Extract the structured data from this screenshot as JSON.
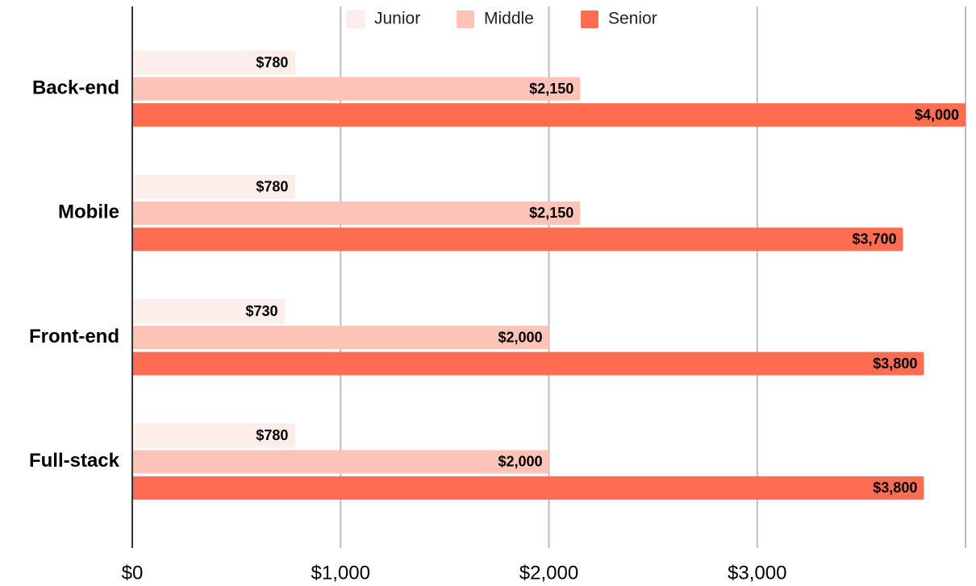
{
  "chart_data": {
    "type": "bar",
    "orientation": "horizontal",
    "categories": [
      "Back-end",
      "Mobile",
      "Front-end",
      "Full-stack"
    ],
    "series": [
      {
        "name": "Junior",
        "color": "#fdeee9",
        "values": [
          780,
          780,
          730,
          780
        ],
        "value_labels": [
          "$780",
          "$780",
          "$730",
          "$780"
        ]
      },
      {
        "name": "Middle",
        "color": "#fdc3b6",
        "values": [
          2150,
          2150,
          2000,
          2000
        ],
        "value_labels": [
          "$2,150",
          "$2,150",
          "$2,000",
          "$2,000"
        ]
      },
      {
        "name": "Senior",
        "color": "#fe6d51",
        "values": [
          4000,
          3700,
          3800,
          3800
        ],
        "value_labels": [
          "$4,000",
          "$3,700",
          "$3,800",
          "$3,800"
        ]
      }
    ],
    "xlim": [
      0,
      4000
    ],
    "xticks": [
      {
        "value": 0,
        "label": "$0"
      },
      {
        "value": 1000,
        "label": "$1,000"
      },
      {
        "value": 2000,
        "label": "$2,000"
      },
      {
        "value": 3000,
        "label": "$3,000"
      }
    ],
    "grid": true,
    "legend": "top"
  }
}
